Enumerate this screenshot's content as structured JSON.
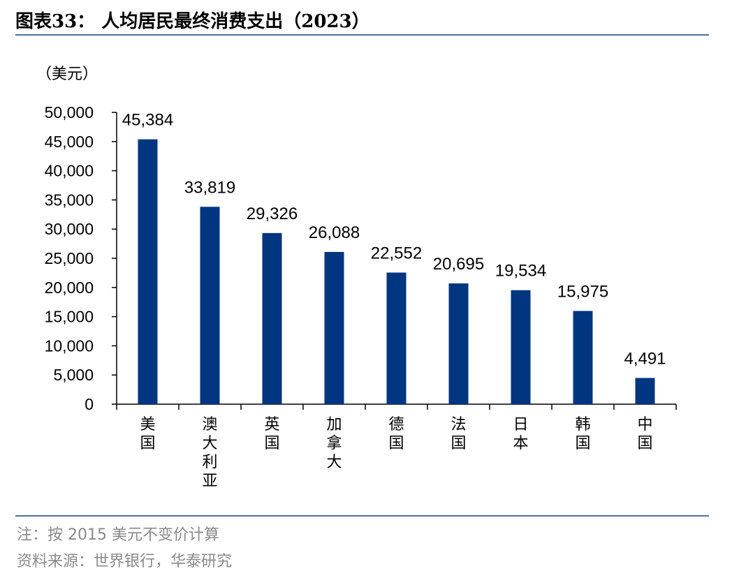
{
  "title": "图表33：  人均居民最终消费支出（2023）",
  "unit_label": "（美元）",
  "colors": {
    "bar": "#003580",
    "rule": "#4f6fa0",
    "axis": "#000000",
    "note": "#8a8a8a"
  },
  "chart_data": {
    "type": "bar",
    "categories": [
      "美国",
      "澳大利亚",
      "英国",
      "加拿大",
      "德国",
      "法国",
      "日本",
      "韩国",
      "中国"
    ],
    "values": [
      45384,
      33819,
      29326,
      26088,
      22552,
      20695,
      19534,
      15975,
      4491
    ],
    "data_labels": [
      "45,384",
      "33,819",
      "29,326",
      "26,088",
      "22,552",
      "20,695",
      "19,534",
      "15,975",
      "4,491"
    ],
    "ylim": [
      0,
      50000
    ],
    "yticks": [
      0,
      5000,
      10000,
      15000,
      20000,
      25000,
      30000,
      35000,
      40000,
      45000,
      50000
    ],
    "ytick_labels": [
      "0",
      "5,000",
      "10,000",
      "15,000",
      "20,000",
      "25,000",
      "30,000",
      "35,000",
      "40,000",
      "45,000",
      "50,000"
    ],
    "grid": false,
    "legend": "none"
  },
  "notes": {
    "note": "注：按 2015 美元不变价计算",
    "source": "资料来源：世界银行，华泰研究"
  }
}
